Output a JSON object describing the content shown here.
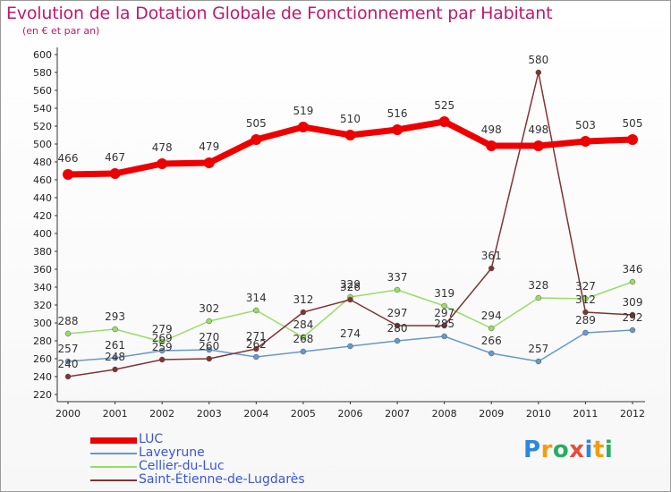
{
  "title": "Evolution de la Dotation Globale de Fonctionnement par Habitant",
  "subtitle": "(en € et par an)",
  "brand": {
    "letters": [
      "P",
      "r",
      "o",
      "x",
      "i",
      "t",
      "i"
    ],
    "colors": [
      "#2e86de",
      "#f39c12",
      "#27ae60",
      "#e74c3c",
      "#2e86de",
      "#f39c12",
      "#27ae60"
    ]
  },
  "chart_data": {
    "type": "line",
    "title": "Evolution de la Dotation Globale de Fonctionnement par Habitant",
    "subtitle": "(en € et par an)",
    "x": [
      2000,
      2001,
      2002,
      2003,
      2004,
      2005,
      2006,
      2007,
      2008,
      2009,
      2010,
      2011,
      2012
    ],
    "ylim": [
      220,
      600
    ],
    "ytick_step": 20,
    "grid": false,
    "legend_position": "bottom-left",
    "series": [
      {
        "name": "LUC",
        "color": "#ee0000",
        "emphasis": true,
        "values": [
          466,
          467,
          478,
          479,
          505,
          519,
          510,
          516,
          525,
          498,
          498,
          503,
          505
        ]
      },
      {
        "name": "Laveyrune",
        "color": "#6699cc",
        "values": [
          257,
          261,
          269,
          270,
          262,
          268,
          274,
          280,
          285,
          266,
          257,
          289,
          292
        ]
      },
      {
        "name": "Cellier-du-Luc",
        "color": "#99dd66",
        "values": [
          288,
          293,
          279,
          302,
          314,
          284,
          329,
          337,
          319,
          294,
          328,
          327,
          346
        ]
      },
      {
        "name": "Saint-Étienne-de-Lugdarès",
        "color": "#803333",
        "values": [
          240,
          248,
          259,
          260,
          271,
          312,
          326,
          297,
          297,
          361,
          580,
          312,
          309
        ]
      }
    ],
    "data_labels": [
      {
        "series": 0,
        "labels": [
          "466",
          "467",
          "478",
          "479",
          "505",
          "519",
          "510",
          "516",
          "525",
          "498",
          "498",
          "503",
          "505"
        ]
      },
      {
        "series": 1,
        "labels": [
          "257",
          "261",
          "269",
          "270",
          "262",
          "268",
          "274",
          "280",
          "285",
          "266",
          "257",
          "289",
          "292"
        ]
      },
      {
        "series": 2,
        "labels": [
          "288",
          "293",
          "279",
          "302",
          "314",
          "284",
          "329",
          "337",
          "319",
          "294",
          "328",
          "327",
          "346"
        ]
      },
      {
        "series": 3,
        "labels": [
          "240",
          "248",
          "259",
          "260",
          "271",
          "312",
          "326",
          "297",
          "297",
          "361",
          "580",
          "312",
          "309"
        ]
      }
    ]
  }
}
